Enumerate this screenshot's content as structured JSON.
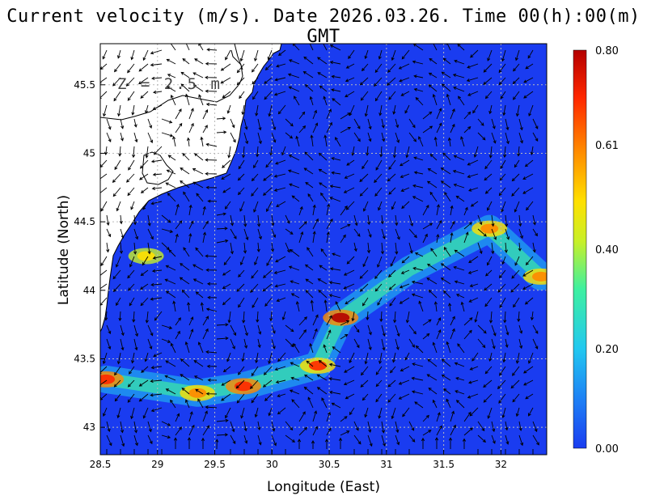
{
  "title": "Current velocity (m/s). Date 2026.03.26. Time 00(h):00(m) GMT",
  "depth_label": "Z = 2.5 m",
  "x_axis": {
    "label": "Longitude (East)",
    "range": [
      28.5,
      32.4
    ],
    "ticks": [
      "28.5",
      "29",
      "29.5",
      "30",
      "30.5",
      "31",
      "31.5",
      "32"
    ]
  },
  "y_axis": {
    "label": "Latitude (North)",
    "range": [
      42.8,
      45.8
    ],
    "ticks": [
      "43",
      "43.5",
      "44",
      "44.5",
      "45",
      "45.5"
    ]
  },
  "colorbar": {
    "min": 0.0,
    "max": 0.8,
    "ticks": [
      "0.80",
      "0.61",
      "0.40",
      "0.20",
      "0.00"
    ],
    "colors": [
      "#1a3cf0",
      "#1e7ff5",
      "#22c8f0",
      "#3ef0a0",
      "#c8f028",
      "#ffe000",
      "#ff8800",
      "#ff2800",
      "#b40000"
    ]
  },
  "grid": "dotted",
  "chart_data": {
    "type": "vector_field",
    "variable": "Current velocity",
    "units": "m/s",
    "date": "2026.03.26",
    "time": "00(h):00(m) GMT",
    "depth": "2.5 m",
    "high_speed_features": [
      {
        "lon": 28.55,
        "lat": 43.35,
        "speed": 0.72
      },
      {
        "lon": 29.35,
        "lat": 43.25,
        "speed": 0.62
      },
      {
        "lon": 29.75,
        "lat": 43.3,
        "speed": 0.7
      },
      {
        "lon": 30.4,
        "lat": 43.45,
        "speed": 0.66
      },
      {
        "lon": 30.6,
        "lat": 43.8,
        "speed": 0.78
      },
      {
        "lon": 31.9,
        "lat": 44.45,
        "speed": 0.6
      },
      {
        "lon": 32.35,
        "lat": 44.1,
        "speed": 0.58
      },
      {
        "lon": 28.9,
        "lat": 44.25,
        "speed": 0.5
      }
    ]
  }
}
